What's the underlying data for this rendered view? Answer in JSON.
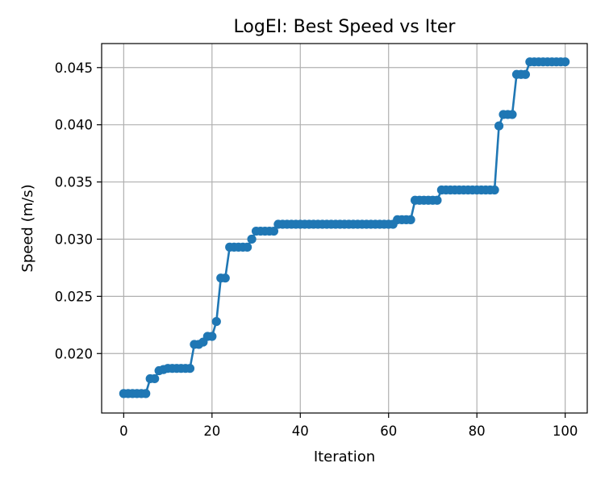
{
  "chart_data": {
    "type": "line",
    "title": "LogEI: Best Speed vs Iter",
    "xlabel": "Iteration",
    "ylabel": "Speed (m/s)",
    "xlim": [
      -5,
      105
    ],
    "ylim": [
      0.0148,
      0.0471
    ],
    "xticks": [
      0,
      20,
      40,
      60,
      80,
      100
    ],
    "yticks": [
      0.02,
      0.025,
      0.03,
      0.035,
      0.04,
      0.045
    ],
    "xtick_labels": [
      "0",
      "20",
      "40",
      "60",
      "80",
      "100"
    ],
    "ytick_labels": [
      "0.020",
      "0.025",
      "0.030",
      "0.035",
      "0.040",
      "0.045"
    ],
    "grid": true,
    "colors": {
      "series": "#1f77b4"
    },
    "series": [
      {
        "markers": "circle",
        "x": [
          0,
          1,
          2,
          3,
          4,
          5,
          6,
          7,
          8,
          9,
          10,
          11,
          12,
          13,
          14,
          15,
          16,
          17,
          18,
          19,
          20,
          21,
          22,
          23,
          24,
          25,
          26,
          27,
          28,
          29,
          30,
          31,
          32,
          33,
          34,
          35,
          36,
          37,
          38,
          39,
          40,
          41,
          42,
          43,
          44,
          45,
          46,
          47,
          48,
          49,
          50,
          51,
          52,
          53,
          54,
          55,
          56,
          57,
          58,
          59,
          60,
          61,
          62,
          63,
          64,
          65,
          66,
          67,
          68,
          69,
          70,
          71,
          72,
          73,
          74,
          75,
          76,
          77,
          78,
          79,
          80,
          81,
          82,
          83,
          84,
          85,
          86,
          87,
          88,
          89,
          90,
          91,
          92,
          93,
          94,
          95,
          96,
          97,
          98,
          99,
          100
        ],
        "y": [
          0.0165,
          0.0165,
          0.0165,
          0.0165,
          0.0165,
          0.0165,
          0.0178,
          0.0178,
          0.0185,
          0.0186,
          0.0187,
          0.0187,
          0.0187,
          0.0187,
          0.0187,
          0.0187,
          0.0208,
          0.0208,
          0.021,
          0.0215,
          0.0215,
          0.0228,
          0.0266,
          0.0266,
          0.0293,
          0.0293,
          0.0293,
          0.0293,
          0.0293,
          0.03,
          0.0307,
          0.0307,
          0.0307,
          0.0307,
          0.0307,
          0.0313,
          0.0313,
          0.0313,
          0.0313,
          0.0313,
          0.0313,
          0.0313,
          0.0313,
          0.0313,
          0.0313,
          0.0313,
          0.0313,
          0.0313,
          0.0313,
          0.0313,
          0.0313,
          0.0313,
          0.0313,
          0.0313,
          0.0313,
          0.0313,
          0.0313,
          0.0313,
          0.0313,
          0.0313,
          0.0313,
          0.0313,
          0.0317,
          0.0317,
          0.0317,
          0.0317,
          0.0334,
          0.0334,
          0.0334,
          0.0334,
          0.0334,
          0.0334,
          0.0343,
          0.0343,
          0.0343,
          0.0343,
          0.0343,
          0.0343,
          0.0343,
          0.0343,
          0.0343,
          0.0343,
          0.0343,
          0.0343,
          0.0343,
          0.0399,
          0.0409,
          0.0409,
          0.0409,
          0.0444,
          0.0444,
          0.0444,
          0.0455,
          0.0455,
          0.0455,
          0.0455,
          0.0455,
          0.0455,
          0.0455,
          0.0455,
          0.0455
        ]
      }
    ]
  }
}
